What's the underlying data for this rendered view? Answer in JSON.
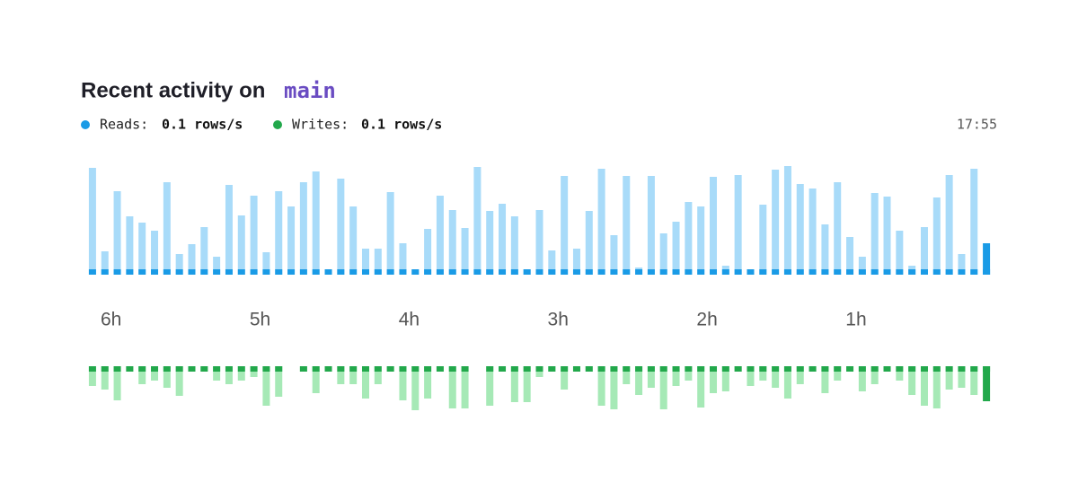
{
  "title": "Recent activity on",
  "branch": "main",
  "time": "17:55",
  "chart_data": {
    "type": "bar",
    "categories": [
      null,
      "6h",
      null,
      null,
      null,
      null,
      null,
      null,
      null,
      null,
      null,
      null,
      null,
      "5h",
      null,
      null,
      null,
      null,
      null,
      null,
      null,
      null,
      null,
      null,
      null,
      "4h",
      null,
      null,
      null,
      null,
      null,
      null,
      null,
      null,
      null,
      null,
      null,
      "3h",
      null,
      null,
      null,
      null,
      null,
      null,
      null,
      null,
      null,
      null,
      null,
      "2h",
      null,
      null,
      null,
      null,
      null,
      null,
      null,
      null,
      null,
      null,
      null,
      "1h",
      null,
      null,
      null,
      null,
      null,
      null,
      null,
      null,
      null,
      null,
      null
    ],
    "ylim": [
      0,
      125
    ],
    "highlight_last": true,
    "series": [
      {
        "name": "Reads:",
        "rate": "0.1 rows/s",
        "color": "#a8dbf9",
        "base_color": "#1a9be6",
        "direction": "up",
        "values": [
          119,
          26,
          93,
          65,
          58,
          49,
          103,
          23,
          34,
          53,
          20,
          100,
          66,
          88,
          25,
          93,
          76,
          103,
          115,
          6,
          107,
          76,
          29,
          29,
          92,
          35,
          6,
          51,
          88,
          72,
          52,
          120,
          71,
          79,
          65,
          6,
          72,
          27,
          110,
          29,
          71,
          118,
          44,
          110,
          8,
          110,
          46,
          59,
          81,
          76,
          109,
          10,
          111,
          6,
          78,
          117,
          121,
          101,
          96,
          56,
          103,
          42,
          20,
          91,
          87,
          49,
          10,
          53,
          86,
          111,
          23,
          118,
          35
        ]
      },
      {
        "name": "Writes:",
        "rate": "0.1 rows/s",
        "color": "#a6e9b6",
        "base_color": "#22a84b",
        "direction": "down",
        "values": [
          22,
          26,
          38,
          6,
          20,
          16,
          24,
          33,
          6,
          6,
          16,
          20,
          16,
          12,
          44,
          34,
          null,
          6,
          30,
          6,
          20,
          20,
          36,
          20,
          6,
          38,
          49,
          36,
          6,
          47,
          47,
          null,
          44,
          6,
          40,
          40,
          12,
          6,
          26,
          6,
          6,
          44,
          48,
          20,
          32,
          24,
          48,
          22,
          16,
          46,
          30,
          28,
          6,
          22,
          16,
          24,
          36,
          20,
          6,
          30,
          16,
          6,
          28,
          20,
          6,
          16,
          32,
          44,
          47,
          26,
          24,
          32,
          39
        ]
      }
    ]
  }
}
